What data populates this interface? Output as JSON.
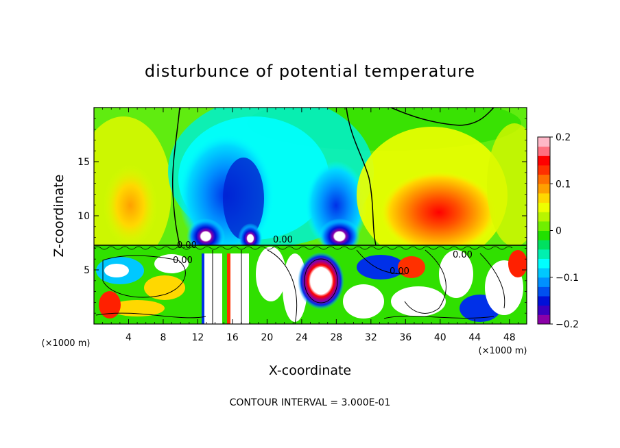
{
  "chart_data": {
    "type": "heatmap",
    "title": "disturbunce of potential temperature",
    "xlabel": "X-coordinate",
    "ylabel": "Z-coordinate",
    "x_unit_label": "(×1000 m)",
    "y_unit_label": "(×1000 m)",
    "xlim": [
      0,
      50
    ],
    "ylim": [
      0,
      20
    ],
    "x_ticks": [
      4,
      8,
      12,
      16,
      20,
      24,
      28,
      32,
      36,
      40,
      44,
      48
    ],
    "y_ticks": [
      5,
      10,
      15
    ],
    "colorbar": {
      "range": [
        -0.2,
        0.2
      ],
      "ticks": [
        "0.2",
        "0.1",
        "0",
        "−0.1",
        "−0.2"
      ],
      "colors": [
        "#8b00a8",
        "#3a00c0",
        "#0010d8",
        "#0050f0",
        "#0090ff",
        "#00c8ff",
        "#00ffff",
        "#00f0b0",
        "#00e060",
        "#22e000",
        "#70ef00",
        "#b8f500",
        "#eeff00",
        "#ffd800",
        "#ffa000",
        "#ff7000",
        "#ff3000",
        "#ff0000",
        "#ff7080",
        "#ffb8c8"
      ]
    },
    "contour_labels": [
      "0.00",
      "0.00",
      "0.00",
      "0.00",
      "0.00"
    ],
    "footer": "CONTOUR INTERVAL = 3.000E-01"
  }
}
